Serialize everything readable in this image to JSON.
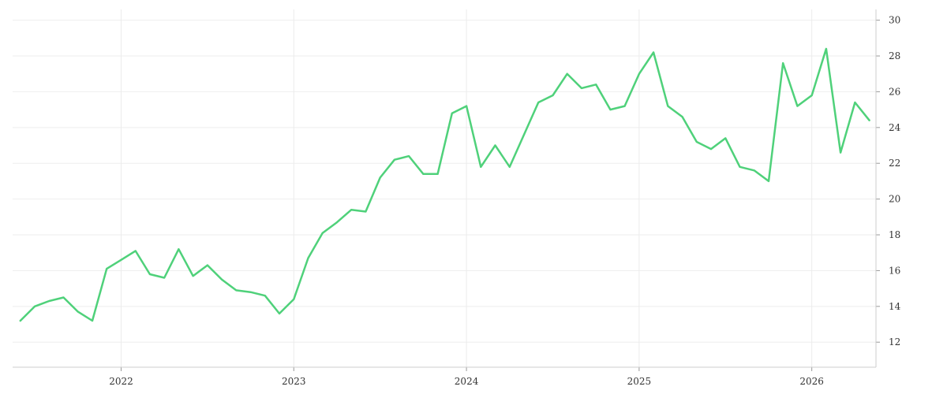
{
  "chart_data": {
    "type": "line",
    "title": "",
    "xlabel": "",
    "ylabel": "",
    "x_tick_labels": [
      "2022",
      "2023",
      "2024",
      "2025",
      "2026"
    ],
    "y_ticks": [
      12,
      14,
      16,
      18,
      20,
      22,
      24,
      26,
      28,
      30
    ],
    "ylim": [
      10.6,
      30.6
    ],
    "xlim": [
      "2021-05-15",
      "2026-05-15"
    ],
    "y_axis_side": "right",
    "grid": true,
    "legend": "none",
    "line_color": "#4fd17a",
    "series": [
      {
        "x": [
          "2021-06",
          "2021-07",
          "2021-08",
          "2021-09",
          "2021-10",
          "2021-11",
          "2021-12",
          "2022-01",
          "2022-02",
          "2022-03",
          "2022-04",
          "2022-05",
          "2022-06",
          "2022-07",
          "2022-08",
          "2022-09",
          "2022-10",
          "2022-11",
          "2022-12",
          "2023-01",
          "2023-02",
          "2023-03",
          "2023-04",
          "2023-05",
          "2023-06",
          "2023-07",
          "2023-08",
          "2023-09",
          "2023-10",
          "2023-11",
          "2023-12",
          "2024-01",
          "2024-02",
          "2024-03",
          "2024-04",
          "2024-05",
          "2024-06",
          "2024-07",
          "2024-08",
          "2024-09",
          "2024-10",
          "2024-11",
          "2024-12",
          "2025-01",
          "2025-02",
          "2025-03",
          "2025-04",
          "2025-05",
          "2025-06",
          "2025-07",
          "2025-08",
          "2025-09",
          "2025-10",
          "2025-11",
          "2025-12",
          "2026-01",
          "2026-02",
          "2026-03",
          "2026-04",
          "2026-05"
        ],
        "values": [
          13.2,
          14.0,
          14.3,
          14.5,
          13.7,
          13.2,
          16.1,
          16.6,
          17.1,
          15.8,
          15.6,
          17.2,
          15.7,
          16.3,
          15.5,
          14.9,
          14.8,
          14.6,
          13.6,
          14.4,
          16.7,
          18.1,
          18.7,
          19.4,
          19.3,
          21.2,
          22.2,
          22.4,
          21.4,
          21.4,
          24.8,
          25.2,
          21.8,
          23.0,
          21.8,
          23.6,
          25.4,
          25.8,
          27.0,
          26.2,
          26.4,
          25.0,
          25.2,
          27.0,
          28.2,
          25.2,
          24.6,
          23.2,
          22.8,
          23.4,
          21.8,
          21.6,
          21.0,
          27.6,
          25.2,
          25.8,
          28.4,
          22.6,
          25.4,
          24.4
        ]
      }
    ]
  }
}
